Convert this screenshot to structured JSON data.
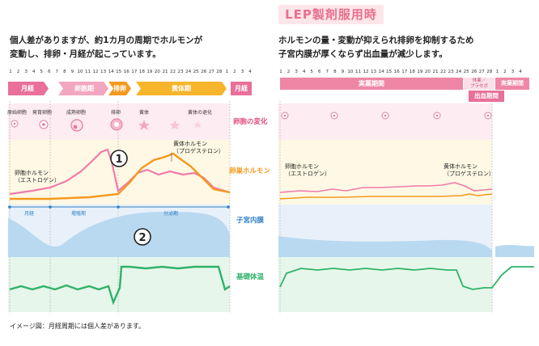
{
  "left": {
    "description": [
      "個人差がありますが、約1カ月の周期でホルモンが",
      "変動し、排卵・月経が起こっています。"
    ],
    "days": [
      "1",
      "2",
      "3",
      "4",
      "5",
      "6",
      "7",
      "8",
      "9",
      "10",
      "11",
      "12",
      "13",
      "14",
      "15",
      "16",
      "17",
      "18",
      "19",
      "20",
      "21",
      "22",
      "23",
      "24",
      "25",
      "26",
      "27",
      "28",
      "1",
      "2",
      "3",
      "4"
    ],
    "phases": {
      "menstruation": "月経",
      "follicular": "卵胞期",
      "ovulation": "排卵",
      "luteal": "黄体期",
      "menstruation_next": "月経"
    },
    "egg_labels": [
      "原始卵胞",
      "発育卵胞",
      "成熟卵胞",
      "排卵",
      "黄体",
      "黄体の退化"
    ],
    "estrogen_label": [
      "卵胞ホルモン",
      "（エストロゲン）"
    ],
    "progesterone_label": [
      "黄体ホルモン",
      "（プロゲステロン）"
    ],
    "circle1": "1",
    "circle2": "2",
    "endometrium_phases": {
      "menstruation": "月経",
      "proliferative": "増殖期",
      "secretory": "分泌期"
    }
  },
  "center": {
    "egg_change": "卵胞の変化",
    "ovarian_hormone": "卵巣ホルモン",
    "endometrium": "子宮内膜",
    "bbt": "基礎体温"
  },
  "right": {
    "title": "LEP製剤服用時",
    "description": [
      "ホルモンの量・変動が抑えられ排卵を抑制するため",
      "子宮内膜が厚くならず出血量が減少します。"
    ],
    "days": [
      "1",
      "2",
      "3",
      "4",
      "5",
      "6",
      "7",
      "8",
      "9",
      "10",
      "11",
      "12",
      "13",
      "14",
      "15",
      "16",
      "17",
      "18",
      "19",
      "20",
      "21",
      "22",
      "23",
      "24",
      "25",
      "26",
      "27",
      "28",
      "1",
      "2",
      "3",
      "4"
    ],
    "active_period": "実薬期間",
    "placebo": [
      "休薬／",
      "プラセボ"
    ],
    "active_period_next": "実薬期間",
    "bleeding_period": "出血期間",
    "estrogen_label": [
      "卵胞ホルモン",
      "（エストロゲン）"
    ],
    "progesterone_label": [
      "黄体ホルモン",
      "（プロゲステロン）"
    ]
  },
  "footnote": "イメージ図：月経周期には個人差があります。",
  "colors": {
    "pink": "#ef7ca8",
    "orange": "#f39a1f",
    "green": "#2fb26a",
    "blue": "#2f7fc2",
    "endometrium": "#b9d9f0",
    "band_pink": "#fdecf2",
    "band_yellow": "#fff8e4",
    "band_blue": "#e8f1fa",
    "band_green": "#e7f6ea",
    "label_red": "#e0507d"
  }
}
